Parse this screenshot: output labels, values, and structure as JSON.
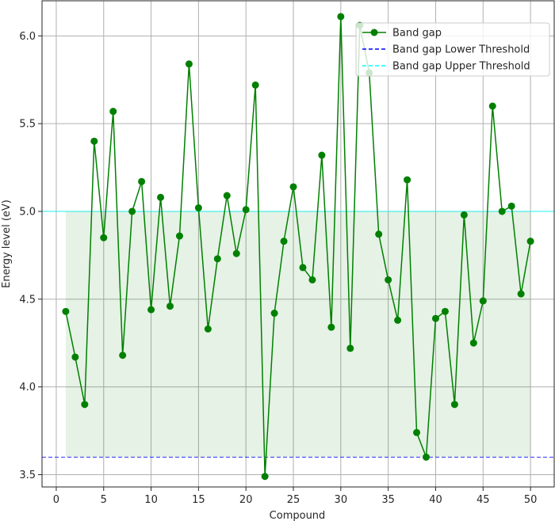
{
  "chart_data": {
    "type": "line",
    "title": "",
    "xlabel": "Compound",
    "ylabel": "Energy level (eV)",
    "xlim": [
      -1.5,
      52.5
    ],
    "ylim": [
      3.43,
      6.2
    ],
    "x_ticks": [
      0,
      5,
      10,
      15,
      20,
      25,
      30,
      35,
      40,
      45,
      50
    ],
    "y_ticks": [
      3.5,
      4.0,
      4.5,
      5.0,
      5.5,
      6.0
    ],
    "y_tick_labels": [
      "3.5",
      "4.0",
      "4.5",
      "5.0",
      "5.5",
      "6.0"
    ],
    "grid": true,
    "legend_position": "upper right",
    "series": [
      {
        "name": "Band gap",
        "color": "#008000",
        "marker": "circle",
        "x": [
          1,
          2,
          3,
          4,
          5,
          6,
          7,
          8,
          9,
          10,
          11,
          12,
          13,
          14,
          15,
          16,
          17,
          18,
          19,
          20,
          21,
          22,
          23,
          24,
          25,
          26,
          27,
          28,
          29,
          30,
          31,
          32,
          33,
          34,
          35,
          36,
          37,
          38,
          39,
          40,
          41,
          42,
          43,
          44,
          45,
          46,
          47,
          48,
          49,
          50
        ],
        "values": [
          4.43,
          4.17,
          3.9,
          5.4,
          4.85,
          5.57,
          4.18,
          5.0,
          5.17,
          4.44,
          5.08,
          4.46,
          4.86,
          5.84,
          5.02,
          4.33,
          4.73,
          5.09,
          4.76,
          5.01,
          5.72,
          3.49,
          4.42,
          4.83,
          5.14,
          4.68,
          4.61,
          5.32,
          4.34,
          6.11,
          4.22,
          6.06,
          5.79,
          4.87,
          4.61,
          4.38,
          5.18,
          3.74,
          3.6,
          4.39,
          4.43,
          3.9,
          4.98,
          4.25,
          4.49,
          5.6,
          5.0,
          5.03,
          4.53,
          4.83
        ]
      }
    ],
    "thresholds": [
      {
        "name": "Band gap Lower Threshold",
        "value": 3.6,
        "color": "#0000ff",
        "style": "dashed"
      },
      {
        "name": "Band gap Upper Threshold",
        "value": 5.0,
        "color": "#00ffff",
        "style": "solid"
      }
    ],
    "shaded_region": {
      "x_range": [
        1,
        50
      ],
      "y_range": [
        3.6,
        5.0
      ],
      "color": "#008000"
    }
  }
}
